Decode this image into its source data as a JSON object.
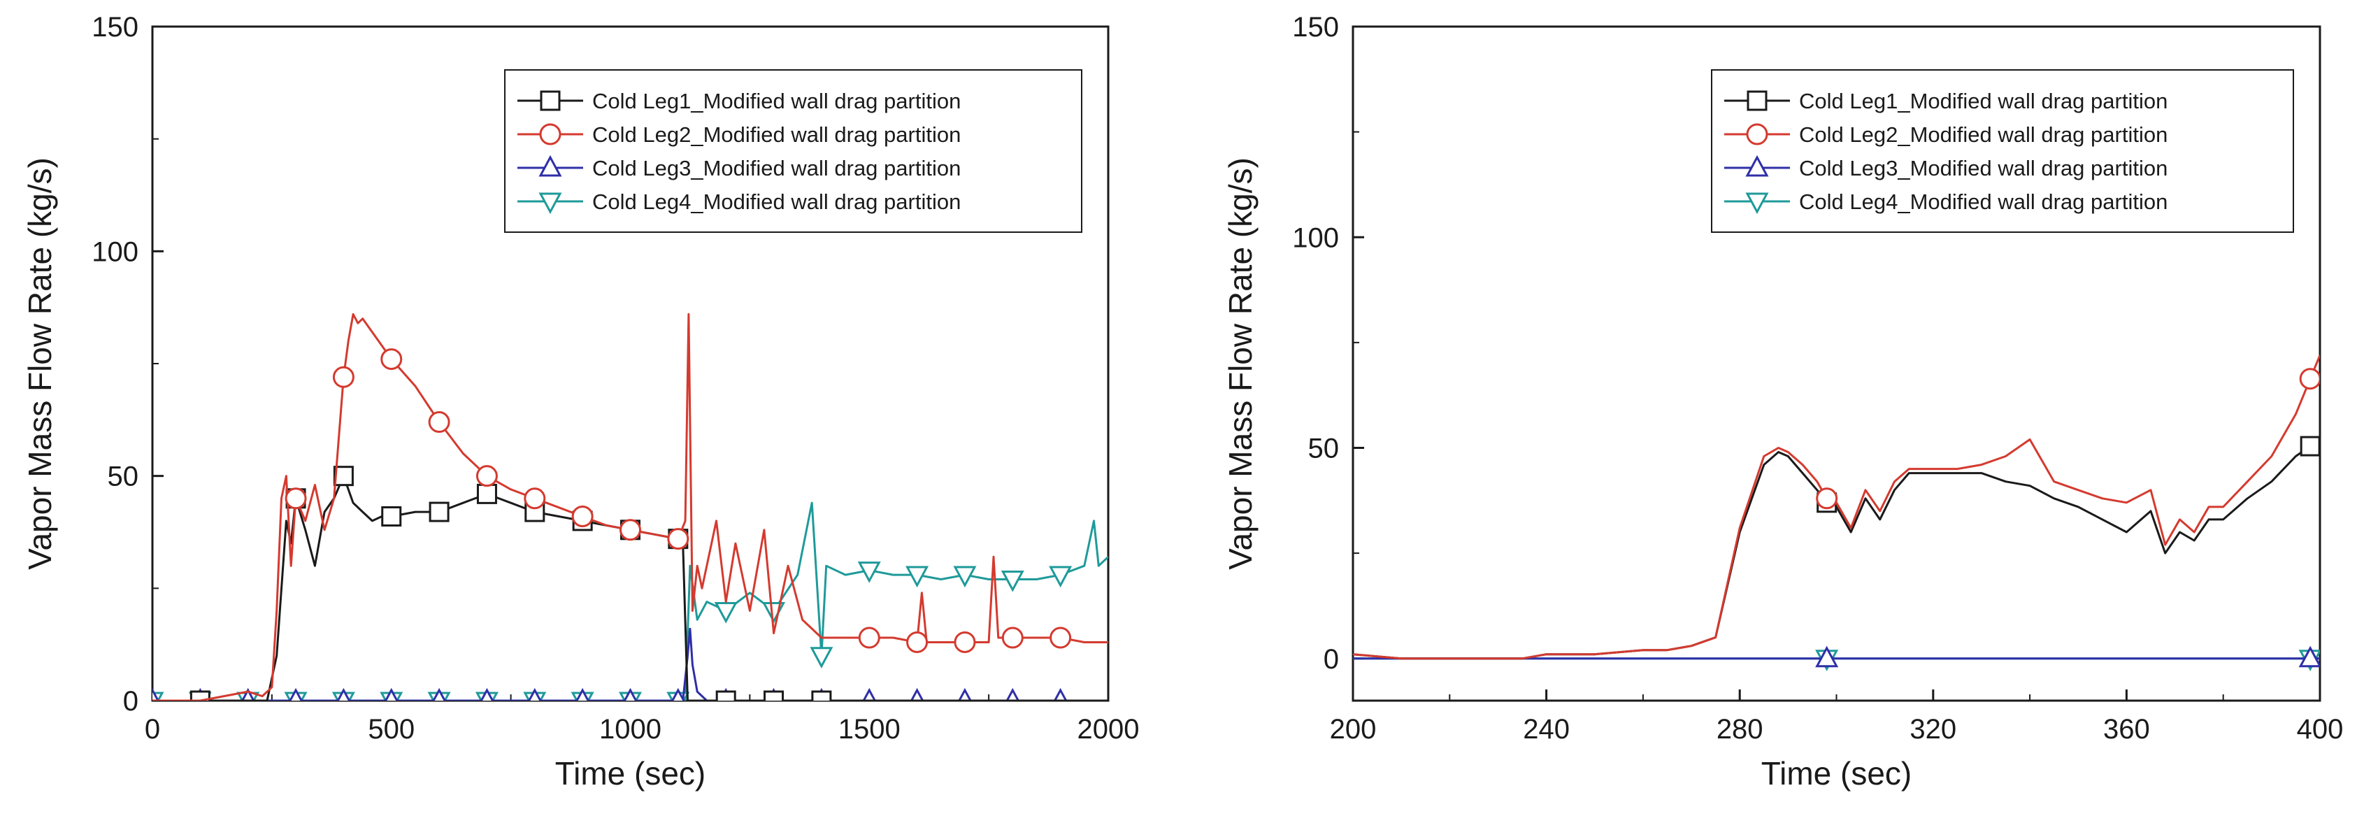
{
  "chart_data": [
    {
      "type": "line",
      "xlabel": "Time (sec)",
      "ylabel": "Vapor Mass Flow Rate (kg/s)",
      "xlim": [
        0,
        2000
      ],
      "ylim": [
        0,
        150
      ],
      "xticks": [
        0,
        500,
        1000,
        1500,
        2000
      ],
      "yticks": [
        0,
        50,
        100,
        150
      ],
      "legend_position": "top-right",
      "series": [
        {
          "name": "Cold Leg1_Modified wall drag partition",
          "color": "#1a1a1a",
          "marker": "square",
          "x": [
            0,
            100,
            200,
            240,
            260,
            280,
            290,
            300,
            320,
            340,
            360,
            380,
            400,
            420,
            440,
            460,
            480,
            500,
            550,
            600,
            650,
            700,
            750,
            800,
            850,
            900,
            950,
            1000,
            1050,
            1100,
            1110,
            1120,
            1130,
            1150,
            1200,
            1300,
            1400,
            1500,
            1600,
            1700,
            1800,
            1900,
            2000
          ],
          "y": [
            0,
            0,
            0,
            0,
            10,
            40,
            35,
            45,
            38,
            30,
            42,
            45,
            50,
            44,
            42,
            40,
            41,
            41,
            42,
            42,
            44,
            46,
            44,
            42,
            41,
            40,
            39,
            38,
            37,
            36,
            35,
            0,
            0,
            0,
            0,
            0,
            0,
            0,
            0,
            0,
            0,
            0,
            0
          ],
          "markers_x": [
            100,
            300,
            400,
            500,
            600,
            700,
            800,
            900,
            1000,
            1100,
            1200,
            1300,
            1400
          ]
        },
        {
          "name": "Cold Leg2_Modified wall drag partition",
          "color": "#d43a2f",
          "marker": "circle",
          "x": [
            0,
            100,
            200,
            230,
            250,
            260,
            270,
            280,
            290,
            300,
            320,
            340,
            360,
            380,
            400,
            410,
            420,
            430,
            440,
            460,
            480,
            500,
            550,
            600,
            650,
            700,
            750,
            800,
            850,
            900,
            950,
            1000,
            1050,
            1100,
            1115,
            1122,
            1130,
            1140,
            1150,
            1180,
            1200,
            1220,
            1250,
            1280,
            1300,
            1330,
            1360,
            1400,
            1450,
            1500,
            1550,
            1600,
            1610,
            1620,
            1650,
            1700,
            1750,
            1760,
            1770,
            1800,
            1850,
            1900,
            1950,
            2000
          ],
          "y": [
            0,
            0,
            2,
            1,
            3,
            20,
            45,
            50,
            30,
            45,
            40,
            48,
            38,
            45,
            72,
            80,
            86,
            84,
            85,
            82,
            79,
            76,
            70,
            62,
            55,
            50,
            47,
            45,
            43,
            41,
            39,
            38,
            37,
            36,
            40,
            86,
            20,
            30,
            25,
            40,
            22,
            35,
            20,
            38,
            15,
            30,
            18,
            14,
            14,
            14,
            14,
            13,
            24,
            13,
            13,
            13,
            13,
            32,
            14,
            14,
            14,
            14,
            13,
            13
          ],
          "markers_x": [
            300,
            400,
            500,
            600,
            700,
            800,
            900,
            1000,
            1100,
            1500,
            1600,
            1700,
            1800,
            1900
          ]
        },
        {
          "name": "Cold Leg3_Modified wall drag partition",
          "color": "#2f2fa8",
          "marker": "triangle-up",
          "x": [
            0,
            100,
            200,
            300,
            400,
            500,
            600,
            700,
            800,
            900,
            1000,
            1100,
            1110,
            1120,
            1125,
            1130,
            1140,
            1160,
            1200,
            1300,
            1400,
            1500,
            1600,
            1700,
            1800,
            1900,
            2000
          ],
          "y": [
            0,
            0,
            0,
            0,
            0,
            0,
            0,
            0,
            0,
            0,
            0,
            0,
            0,
            10,
            16,
            8,
            2,
            0,
            0,
            0,
            0,
            0,
            0,
            0,
            0,
            0,
            0
          ],
          "markers_x": [
            0,
            100,
            200,
            300,
            400,
            500,
            600,
            700,
            800,
            900,
            1000,
            1100,
            1200,
            1300,
            1400,
            1500,
            1600,
            1700,
            1800,
            1900
          ]
        },
        {
          "name": "Cold Leg4_Modified wall drag partition",
          "color": "#1f9a9a",
          "marker": "triangle-down",
          "x": [
            0,
            100,
            200,
            300,
            400,
            500,
            600,
            700,
            800,
            900,
            1000,
            1100,
            1115,
            1125,
            1140,
            1160,
            1200,
            1250,
            1300,
            1350,
            1380,
            1400,
            1410,
            1450,
            1500,
            1550,
            1600,
            1650,
            1700,
            1750,
            1800,
            1850,
            1900,
            1950,
            1970,
            1980,
            2000
          ],
          "y": [
            0,
            0,
            0,
            0,
            0,
            0,
            0,
            0,
            0,
            0,
            0,
            0,
            0,
            30,
            18,
            22,
            20,
            24,
            20,
            28,
            44,
            10,
            30,
            28,
            29,
            28,
            28,
            27,
            28,
            27,
            27,
            27,
            28,
            30,
            40,
            30,
            32
          ],
          "markers_x": [
            0,
            100,
            200,
            300,
            400,
            500,
            600,
            700,
            800,
            900,
            1000,
            1100,
            1200,
            1300,
            1400,
            1500,
            1600,
            1700,
            1800,
            1900
          ]
        }
      ]
    },
    {
      "type": "line",
      "xlabel": "Time (sec)",
      "ylabel": "Vapor Mass Flow Rate (kg/s)",
      "xlim": [
        200,
        400
      ],
      "ylim": [
        -10,
        150
      ],
      "xticks": [
        200,
        240,
        280,
        320,
        360,
        400
      ],
      "yticks": [
        0,
        50,
        100,
        150
      ],
      "legend_position": "top-right",
      "series": [
        {
          "name": "Cold Leg1_Modified wall drag partition",
          "color": "#1a1a1a",
          "marker": "square",
          "x": [
            200,
            210,
            220,
            230,
            235,
            240,
            250,
            260,
            265,
            270,
            275,
            280,
            285,
            288,
            290,
            293,
            296,
            298,
            300,
            303,
            306,
            309,
            312,
            315,
            320,
            325,
            330,
            335,
            340,
            345,
            350,
            355,
            360,
            365,
            368,
            371,
            374,
            377,
            380,
            385,
            390,
            395,
            400
          ],
          "y": [
            1,
            0,
            0,
            0,
            0,
            1,
            1,
            2,
            2,
            3,
            5,
            30,
            46,
            49,
            48,
            44,
            40,
            37,
            36,
            30,
            38,
            33,
            40,
            44,
            44,
            44,
            44,
            42,
            41,
            38,
            36,
            33,
            30,
            35,
            25,
            30,
            28,
            33,
            33,
            38,
            42,
            48,
            52
          ],
          "markers_x": [
            298,
            398
          ]
        },
        {
          "name": "Cold Leg2_Modified wall drag partition",
          "color": "#d43a2f",
          "marker": "circle",
          "x": [
            200,
            210,
            220,
            230,
            235,
            240,
            250,
            260,
            265,
            270,
            275,
            280,
            285,
            288,
            290,
            293,
            296,
            298,
            300,
            303,
            306,
            309,
            312,
            315,
            320,
            325,
            330,
            335,
            340,
            345,
            350,
            355,
            360,
            365,
            368,
            371,
            374,
            377,
            380,
            385,
            390,
            395,
            400
          ],
          "y": [
            1,
            0,
            0,
            0,
            0,
            1,
            1,
            2,
            2,
            3,
            5,
            31,
            48,
            50,
            49,
            46,
            42,
            38,
            37,
            31,
            40,
            35,
            42,
            45,
            45,
            45,
            46,
            48,
            52,
            42,
            40,
            38,
            37,
            40,
            27,
            33,
            30,
            36,
            36,
            42,
            48,
            58,
            72
          ],
          "markers_x": [
            298,
            398
          ]
        },
        {
          "name": "Cold Leg3_Modified wall drag partition",
          "color": "#2f2fa8",
          "marker": "triangle-up",
          "x": [
            200,
            400
          ],
          "y": [
            0,
            0
          ],
          "markers_x": [
            298,
            398
          ]
        },
        {
          "name": "Cold Leg4_Modified wall drag partition",
          "color": "#1f9a9a",
          "marker": "triangle-down",
          "x": [
            200,
            400
          ],
          "y": [
            0,
            0
          ],
          "markers_x": [
            298,
            398
          ]
        }
      ]
    }
  ]
}
